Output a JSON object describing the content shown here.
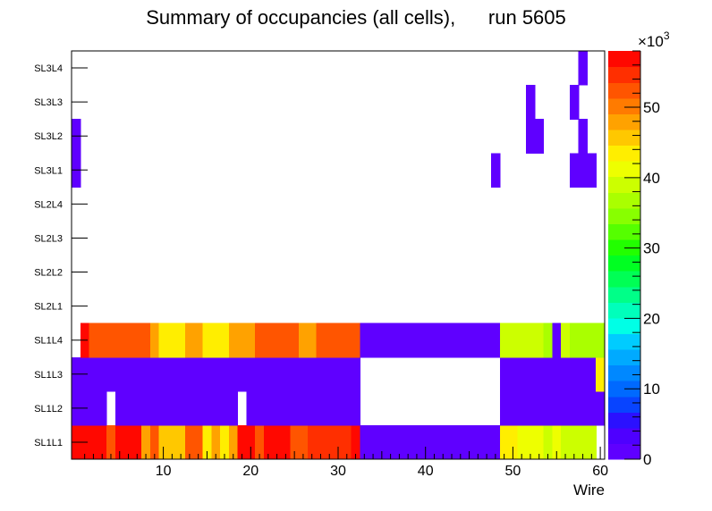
{
  "chart_data": {
    "type": "heatmap",
    "title": "Summary of occupancies (all cells),      run 5605",
    "xlabel": "Wire",
    "ylabel": "",
    "xlim": [
      0,
      60
    ],
    "x_ticks": [
      10,
      20,
      30,
      40,
      50,
      60
    ],
    "y_categories": [
      "SL1L1",
      "SL1L2",
      "SL1L3",
      "SL1L4",
      "SL2L1",
      "SL2L2",
      "SL2L3",
      "SL2L4",
      "SL3L1",
      "SL3L2",
      "SL3L3",
      "SL3L4"
    ],
    "z_range": [
      0,
      58000
    ],
    "z_ticks": [
      0,
      10,
      20,
      30,
      40,
      50
    ],
    "z_exponent_label": "×10",
    "z_exponent_power": "3",
    "palette": [
      "#5f00ff",
      "#4e00ff",
      "#2b11ff",
      "#0844ff",
      "#0069ff",
      "#0088ff",
      "#00aaff",
      "#00ccff",
      "#00ffe6",
      "#00ffbb",
      "#00ff88",
      "#00ff55",
      "#00ff22",
      "#22ff00",
      "#55ff00",
      "#88ff00",
      "#aaff00",
      "#ccff00",
      "#eeff00",
      "#ffee00",
      "#ffc800",
      "#ffa200",
      "#ff7b00",
      "#ff5500",
      "#ff2f00",
      "#ff0800"
    ],
    "rows": [
      [
        57000,
        57000,
        57000,
        57000,
        52000,
        57000,
        57000,
        57000,
        48000,
        52000,
        45000,
        45000,
        45000,
        52000,
        52000,
        43000,
        48000,
        43000,
        48000,
        57000,
        57000,
        52000,
        57000,
        57000,
        57000,
        52000,
        52000,
        55000,
        55000,
        55000,
        55000,
        55000,
        57000,
        2000,
        2000,
        2000,
        2000,
        2000,
        2000,
        2000,
        2000,
        2000,
        2000,
        2000,
        2000,
        2000,
        2000,
        2000,
        2000,
        43000,
        43000,
        41000,
        41000,
        41000,
        38000,
        41000,
        38000,
        38000,
        38000,
        38000,
        0
      ],
      [
        2000,
        2000,
        2000,
        2000,
        0,
        2000,
        2000,
        2000,
        2000,
        2000,
        2000,
        2000,
        2000,
        2000,
        2000,
        2000,
        2000,
        2000,
        2000,
        0,
        2000,
        2000,
        2000,
        2000,
        2000,
        2000,
        2000,
        2000,
        2000,
        2000,
        2000,
        2000,
        2000,
        0,
        0,
        0,
        0,
        0,
        0,
        0,
        0,
        0,
        0,
        0,
        0,
        0,
        0,
        0,
        0,
        2000,
        2000,
        2000,
        2000,
        2000,
        2000,
        2000,
        2000,
        2000,
        2000,
        2000,
        2000
      ],
      [
        2000,
        2000,
        2000,
        2000,
        2000,
        2000,
        2000,
        2000,
        2000,
        2000,
        2000,
        2000,
        2000,
        2000,
        2000,
        2000,
        2000,
        2000,
        2000,
        2000,
        2000,
        2000,
        2000,
        2000,
        2000,
        2000,
        2000,
        2000,
        2000,
        2000,
        2000,
        2000,
        2000,
        0,
        0,
        0,
        0,
        0,
        0,
        0,
        0,
        0,
        0,
        0,
        0,
        0,
        0,
        0,
        0,
        2000,
        2000,
        2000,
        2000,
        2000,
        2000,
        2000,
        2000,
        2000,
        2000,
        2000,
        43000
      ],
      [
        0,
        57000,
        52000,
        52000,
        52000,
        52000,
        52000,
        52000,
        52000,
        48000,
        43000,
        43000,
        43000,
        48000,
        48000,
        43000,
        43000,
        43000,
        48000,
        48000,
        48000,
        52000,
        52000,
        52000,
        52000,
        52000,
        48000,
        48000,
        52000,
        52000,
        52000,
        52000,
        52000,
        2000,
        2000,
        2000,
        2000,
        2000,
        2000,
        2000,
        2000,
        2000,
        2000,
        2000,
        2000,
        2000,
        2000,
        2000,
        2000,
        38000,
        38000,
        38000,
        38000,
        38000,
        36000,
        2000,
        38000,
        36000,
        36000,
        36000,
        36000
      ],
      [
        0,
        0,
        0,
        0,
        0,
        0,
        0,
        0,
        0,
        0,
        0,
        0,
        0,
        0,
        0,
        0,
        0,
        0,
        0,
        0,
        0,
        0,
        0,
        0,
        0,
        0,
        0,
        0,
        0,
        0,
        0,
        0,
        0,
        0,
        0,
        0,
        0,
        0,
        0,
        0,
        0,
        0,
        0,
        0,
        0,
        0,
        0,
        0,
        0,
        0,
        0,
        0,
        0,
        0,
        0,
        0,
        0,
        0,
        0,
        0,
        0
      ],
      [
        0,
        0,
        0,
        0,
        0,
        0,
        0,
        0,
        0,
        0,
        0,
        0,
        0,
        0,
        0,
        0,
        0,
        0,
        0,
        0,
        0,
        0,
        0,
        0,
        0,
        0,
        0,
        0,
        0,
        0,
        0,
        0,
        0,
        0,
        0,
        0,
        0,
        0,
        0,
        0,
        0,
        0,
        0,
        0,
        0,
        0,
        0,
        0,
        0,
        0,
        0,
        0,
        0,
        0,
        0,
        0,
        0,
        0,
        0,
        0,
        0
      ],
      [
        0,
        0,
        0,
        0,
        0,
        0,
        0,
        0,
        0,
        0,
        0,
        0,
        0,
        0,
        0,
        0,
        0,
        0,
        0,
        0,
        0,
        0,
        0,
        0,
        0,
        0,
        0,
        0,
        0,
        0,
        0,
        0,
        0,
        0,
        0,
        0,
        0,
        0,
        0,
        0,
        0,
        0,
        0,
        0,
        0,
        0,
        0,
        0,
        0,
        0,
        0,
        0,
        0,
        0,
        0,
        0,
        0,
        0,
        0,
        0,
        0
      ],
      [
        0,
        0,
        0,
        0,
        0,
        0,
        0,
        0,
        0,
        0,
        0,
        0,
        0,
        0,
        0,
        0,
        0,
        0,
        0,
        0,
        0,
        0,
        0,
        0,
        0,
        0,
        0,
        0,
        0,
        0,
        0,
        0,
        0,
        0,
        0,
        0,
        0,
        0,
        0,
        0,
        0,
        0,
        0,
        0,
        0,
        0,
        0,
        0,
        0,
        0,
        0,
        0,
        0,
        0,
        0,
        0,
        0,
        0,
        0,
        0,
        0
      ],
      [
        2000,
        0,
        0,
        0,
        0,
        0,
        0,
        0,
        0,
        0,
        0,
        0,
        0,
        0,
        0,
        0,
        0,
        0,
        0,
        0,
        0,
        0,
        0,
        0,
        0,
        0,
        0,
        0,
        0,
        0,
        0,
        0,
        0,
        0,
        0,
        0,
        0,
        0,
        0,
        0,
        0,
        0,
        0,
        0,
        0,
        0,
        0,
        0,
        2000,
        0,
        0,
        0,
        0,
        0,
        0,
        0,
        0,
        2000,
        2000,
        2000,
        0
      ],
      [
        2000,
        0,
        0,
        0,
        0,
        0,
        0,
        0,
        0,
        0,
        0,
        0,
        0,
        0,
        0,
        0,
        0,
        0,
        0,
        0,
        0,
        0,
        0,
        0,
        0,
        0,
        0,
        0,
        0,
        0,
        0,
        0,
        0,
        0,
        0,
        0,
        0,
        0,
        0,
        0,
        0,
        0,
        0,
        0,
        0,
        0,
        0,
        0,
        0,
        0,
        0,
        0,
        2000,
        2000,
        0,
        0,
        0,
        0,
        2000,
        0,
        0
      ],
      [
        0,
        0,
        0,
        0,
        0,
        0,
        0,
        0,
        0,
        0,
        0,
        0,
        0,
        0,
        0,
        0,
        0,
        0,
        0,
        0,
        0,
        0,
        0,
        0,
        0,
        0,
        0,
        0,
        0,
        0,
        0,
        0,
        0,
        0,
        0,
        0,
        0,
        0,
        0,
        0,
        0,
        0,
        0,
        0,
        0,
        0,
        0,
        0,
        0,
        0,
        0,
        0,
        2000,
        0,
        0,
        0,
        0,
        2000,
        0,
        0,
        0
      ],
      [
        0,
        0,
        0,
        0,
        0,
        0,
        0,
        0,
        0,
        0,
        0,
        0,
        0,
        0,
        0,
        0,
        0,
        0,
        0,
        0,
        0,
        0,
        0,
        0,
        0,
        0,
        0,
        0,
        0,
        0,
        0,
        0,
        0,
        0,
        0,
        0,
        0,
        0,
        0,
        0,
        0,
        0,
        0,
        0,
        0,
        0,
        0,
        0,
        0,
        0,
        0,
        0,
        0,
        0,
        0,
        0,
        0,
        0,
        2000,
        0,
        0
      ]
    ]
  }
}
